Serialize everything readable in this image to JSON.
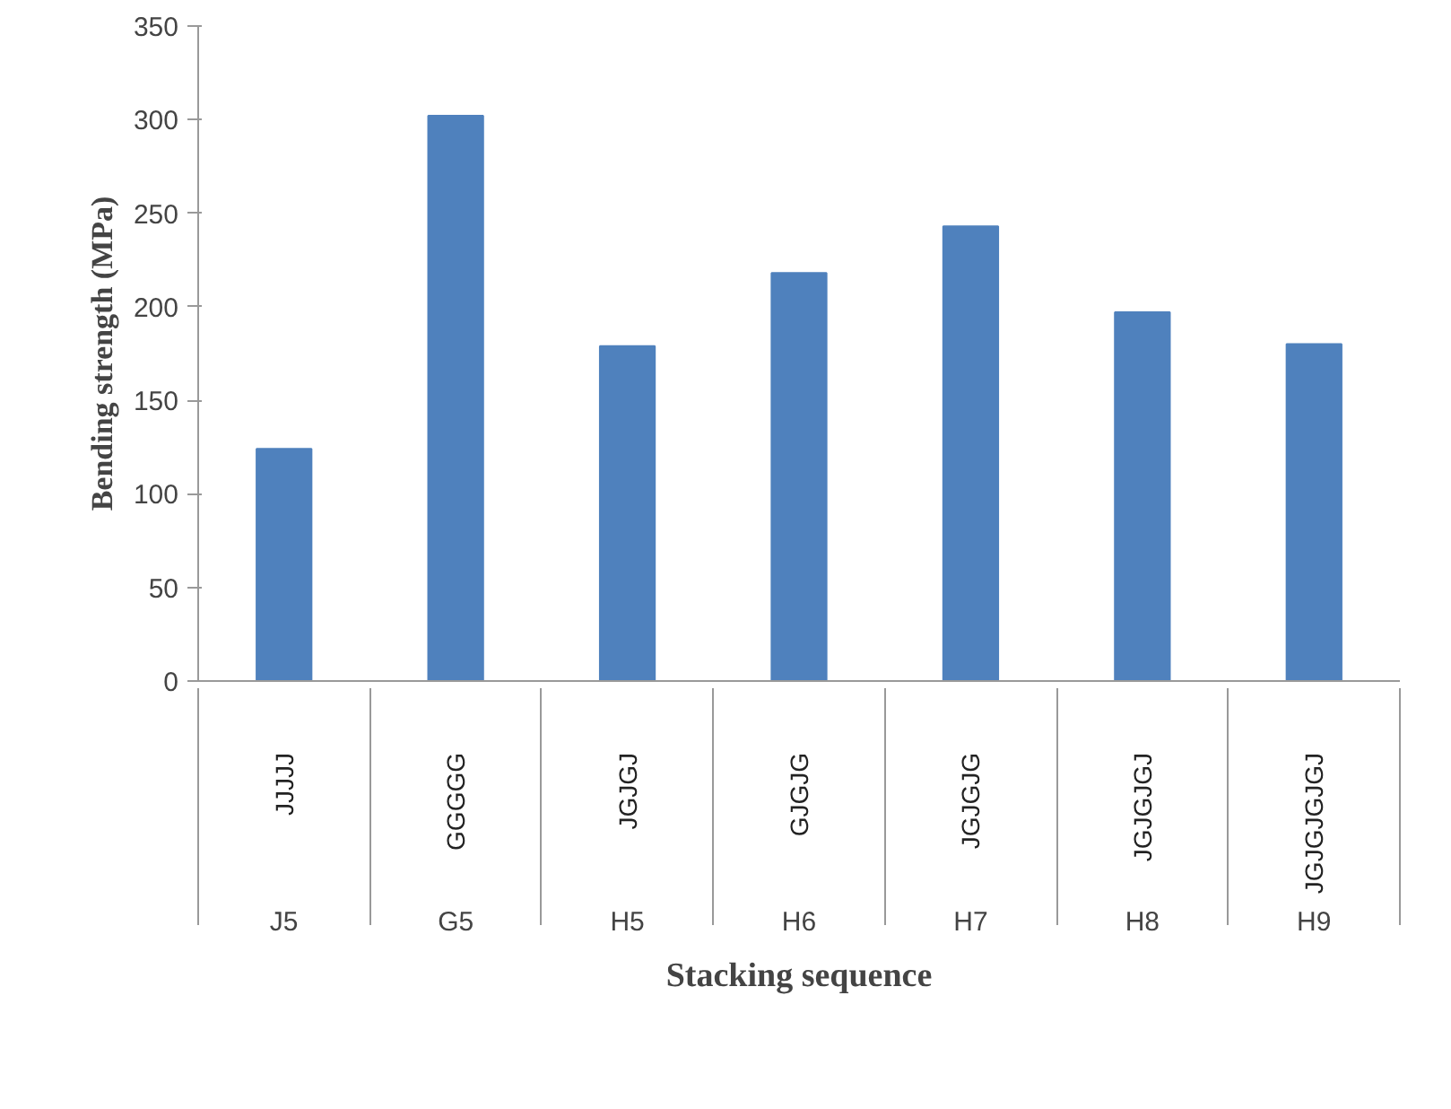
{
  "chart_data": {
    "type": "bar",
    "xlabel": "Stacking sequence",
    "ylabel": "Bending strength (MPa)",
    "categories": [
      "JJJJJ",
      "GGGGG",
      "JGJGJ",
      "GJGJG",
      "JGJGJG",
      "JGJGJGJ",
      "JGJGJGJGJ"
    ],
    "values": [
      124,
      302,
      179,
      218,
      243,
      197,
      180
    ],
    "color": "#4f81bd",
    "ylim": [
      0,
      350
    ],
    "yticks": [
      0,
      50,
      100,
      150,
      200,
      250,
      300,
      350
    ],
    "grid": false,
    "annotations": [
      "J5",
      "G5",
      "H5",
      "H6",
      "H7",
      "H8",
      "H9"
    ]
  }
}
